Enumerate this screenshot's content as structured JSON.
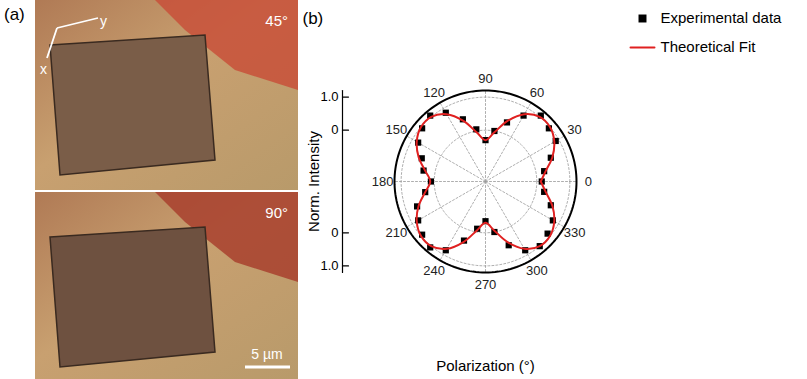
{
  "panel_a": {
    "label": "(a)",
    "axes": [
      "x",
      "y"
    ],
    "images": [
      {
        "label": "45°"
      },
      {
        "label": "90°"
      }
    ],
    "scale_bar": "5 µm"
  },
  "chart_data": {
    "type": "polar_scatter",
    "label": "(b)",
    "x_label": "Polarization (°)",
    "y_label": "Norm. Intensity",
    "xlim": [
      0,
      360
    ],
    "xticks": [
      0,
      30,
      60,
      90,
      120,
      150,
      180,
      210,
      240,
      270,
      300,
      330
    ],
    "ylim": [
      -1.55,
      1.2
    ],
    "yticks": [
      0,
      {
        "value": 1,
        "label": "1.0"
      }
    ],
    "grid": true,
    "legend": "top-right",
    "series": [
      {
        "name": "Experimental data",
        "type": "scatter",
        "marker": "square",
        "color": "#000000",
        "x": [
          0,
          10,
          20,
          30,
          40,
          50,
          60,
          70,
          80,
          90,
          100,
          110,
          120,
          130,
          140,
          150,
          160,
          170,
          180,
          190,
          200,
          210,
          220,
          230,
          240,
          250,
          260,
          270,
          280,
          290,
          300,
          310,
          320,
          330,
          340,
          350
        ],
        "values": [
          0.15,
          0.25,
          0.55,
          0.9,
          0.95,
          1.05,
          0.75,
          0.35,
          0.0,
          -0.3,
          0.05,
          0.45,
          0.85,
          1.05,
          0.95,
          0.8,
          0.5,
          0.35,
          0.1,
          0.3,
          0.65,
          0.8,
          0.95,
          1.05,
          0.85,
          0.35,
          -0.1,
          -0.35,
          0.0,
          0.5,
          0.85,
          1.0,
          0.9,
          0.8,
          0.55,
          0.25
        ]
      },
      {
        "name": "Theoretical Fit",
        "type": "line",
        "color": "#e02020",
        "x": [
          0,
          10,
          20,
          30,
          40,
          50,
          60,
          70,
          80,
          90,
          100,
          110,
          120,
          130,
          140,
          150,
          160,
          170,
          180,
          190,
          200,
          210,
          220,
          230,
          240,
          250,
          260,
          270,
          280,
          290,
          300,
          310,
          320,
          330,
          340,
          350,
          360
        ],
        "values": [
          0.12,
          0.3,
          0.6,
          0.85,
          1.0,
          1.0,
          0.8,
          0.4,
          -0.05,
          -0.3,
          -0.05,
          0.4,
          0.8,
          1.0,
          1.0,
          0.85,
          0.6,
          0.3,
          0.12,
          0.3,
          0.6,
          0.85,
          1.0,
          1.0,
          0.8,
          0.4,
          -0.05,
          -0.3,
          -0.05,
          0.4,
          0.8,
          1.0,
          1.0,
          0.85,
          0.6,
          0.3,
          0.12
        ]
      }
    ]
  }
}
